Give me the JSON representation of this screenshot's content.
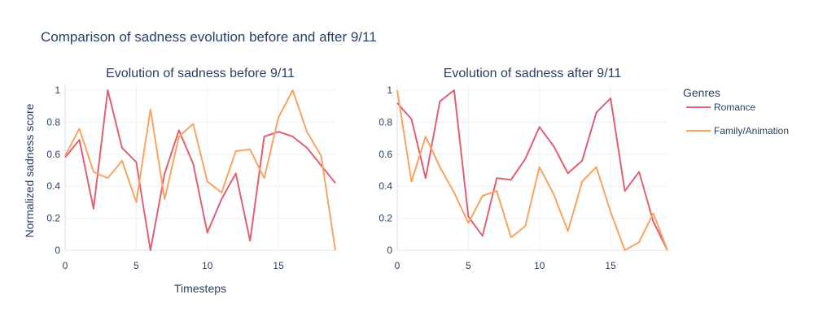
{
  "title": "Comparison of sadness evolution before and after 9/11",
  "legend": {
    "title": "Genres",
    "items": [
      {
        "label": "Romance",
        "color": "#e05f73"
      },
      {
        "label": "Family/Animation",
        "color": "#f6a45f"
      }
    ]
  },
  "chart_data": [
    {
      "type": "line",
      "title": "Evolution of sadness before 9/11",
      "xlabel": "Timesteps",
      "ylabel": "Normalized sadness score",
      "xlim": [
        0,
        19
      ],
      "ylim": [
        0,
        1
      ],
      "xticks": [
        0,
        5,
        10,
        15
      ],
      "yticks": [
        0,
        0.2,
        0.4,
        0.6,
        0.8,
        1
      ],
      "x": [
        0,
        1,
        2,
        3,
        4,
        5,
        6,
        7,
        8,
        9,
        10,
        11,
        12,
        13,
        14,
        15,
        16,
        17,
        18,
        19
      ],
      "series": [
        {
          "name": "Romance",
          "color": "#e05f73",
          "values": [
            0.58,
            0.69,
            0.26,
            1.0,
            0.64,
            0.55,
            0.0,
            0.48,
            0.75,
            0.54,
            0.11,
            0.32,
            0.48,
            0.06,
            0.71,
            0.74,
            0.71,
            0.64,
            0.53,
            0.42
          ]
        },
        {
          "name": "Family/Animation",
          "color": "#f6a45f",
          "values": [
            0.59,
            0.76,
            0.49,
            0.45,
            0.56,
            0.3,
            0.88,
            0.32,
            0.71,
            0.79,
            0.43,
            0.36,
            0.62,
            0.63,
            0.45,
            0.83,
            1.0,
            0.74,
            0.59,
            0.0
          ]
        }
      ]
    },
    {
      "type": "line",
      "title": "Evolution of sadness after 9/11",
      "xlabel": "",
      "ylabel": "",
      "xlim": [
        0,
        19
      ],
      "ylim": [
        0,
        1
      ],
      "xticks": [
        0,
        5,
        10,
        15
      ],
      "yticks": [
        0,
        0.2,
        0.4,
        0.6,
        0.8,
        1
      ],
      "x": [
        0,
        1,
        2,
        3,
        4,
        5,
        6,
        7,
        8,
        9,
        10,
        11,
        12,
        13,
        14,
        15,
        16,
        17,
        18,
        19
      ],
      "series": [
        {
          "name": "Romance",
          "color": "#e05f73",
          "values": [
            0.92,
            0.82,
            0.45,
            0.93,
            1.0,
            0.21,
            0.09,
            0.45,
            0.44,
            0.57,
            0.77,
            0.65,
            0.48,
            0.56,
            0.86,
            0.95,
            0.37,
            0.49,
            0.18,
            0.0
          ]
        },
        {
          "name": "Family/Animation",
          "color": "#f6a45f",
          "values": [
            1.0,
            0.43,
            0.71,
            0.52,
            0.36,
            0.17,
            0.34,
            0.37,
            0.08,
            0.15,
            0.52,
            0.35,
            0.12,
            0.43,
            0.52,
            0.24,
            0.0,
            0.05,
            0.23,
            0.0
          ]
        }
      ]
    }
  ]
}
